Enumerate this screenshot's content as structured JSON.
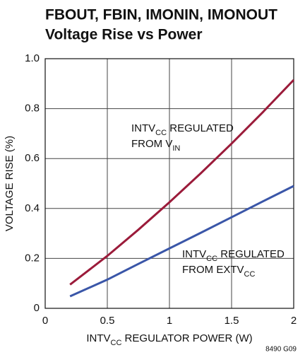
{
  "chart_data": {
    "type": "line",
    "title": [
      "FBOUT, FBIN, IMONIN, IMONOUT",
      "Voltage Rise vs Power"
    ],
    "xlabel": [
      "INTV",
      {
        "sub": "CC"
      },
      " REGULATOR POWER (W)"
    ],
    "ylabel": "VOLTAGE RISE (%)",
    "footnote": "8490 G09",
    "x": [
      0.2,
      0.5,
      0.75,
      1,
      1.25,
      1.5,
      1.75,
      2
    ],
    "series": [
      {
        "color": "#9b1b3a",
        "values": [
          0.095,
          0.21,
          0.315,
          0.425,
          0.54,
          0.66,
          0.785,
          0.915
        ]
      },
      {
        "color": "#3a56a8",
        "values": [
          0.048,
          0.115,
          0.178,
          0.24,
          0.302,
          0.365,
          0.428,
          0.49
        ]
      }
    ],
    "annotations": [
      {
        "lines": [
          [
            "INTV",
            {
              "sub": "CC"
            },
            " REGULATED"
          ],
          [
            "FROM V",
            {
              "sub": "IN"
            }
          ]
        ]
      },
      {
        "lines": [
          [
            "INTV",
            {
              "sub": "CC"
            },
            " REGULATED"
          ],
          [
            "FROM EXTV",
            {
              "sub": "CC"
            }
          ]
        ]
      }
    ],
    "xlim": [
      0,
      2
    ],
    "xticks": [
      0,
      0.5,
      1,
      1.5,
      2
    ],
    "ylim": [
      0,
      1
    ],
    "yticks": [
      0,
      0.2,
      0.4,
      0.6,
      0.8,
      {
        "value": 1,
        "label": "1.0"
      }
    ],
    "grid": true
  }
}
